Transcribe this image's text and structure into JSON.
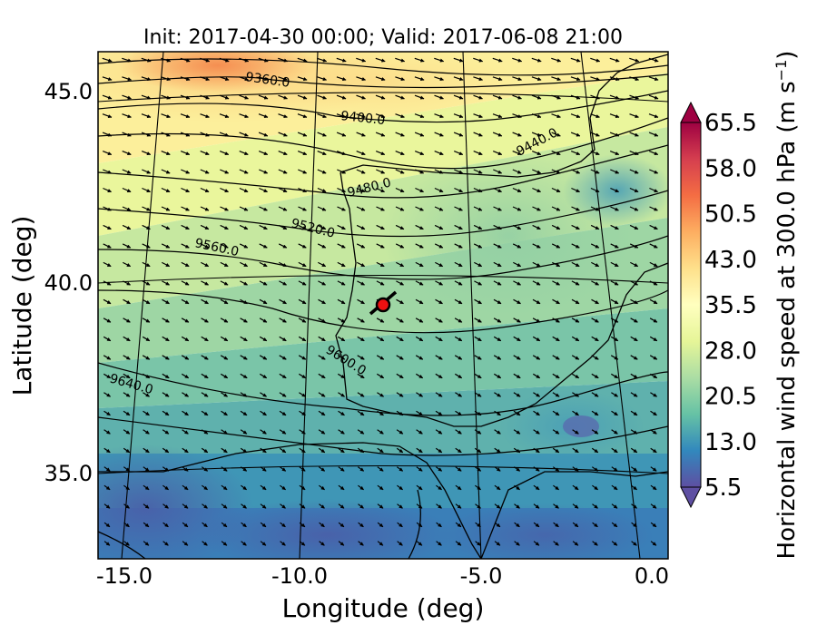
{
  "chart_data": {
    "type": "heatmap",
    "title": "Init: 2017-04-30 00:00; Valid: 2017-06-08 21:00",
    "xlabel": "Longitude (deg)",
    "ylabel": "Latitude (deg)",
    "xlim": [
      -16,
      0.3
    ],
    "ylim": [
      32.5,
      46
    ],
    "x_ticks": [
      "-15.0",
      "-10.0",
      "-5.0",
      "0.0"
    ],
    "x_tick_values": [
      -15,
      -10,
      -5,
      0
    ],
    "y_ticks": [
      "45.0",
      "40.0",
      "35.0"
    ],
    "y_tick_values": [
      45,
      40,
      35
    ],
    "colorbar": {
      "label": "Horizontal wind speed at 300.0 hPa (m s⁻¹)",
      "label_main": "Horizontal wind speed at 300.0 hPa (m s",
      "label_sup": "−1",
      "label_end": ")",
      "min": 5.5,
      "max": 65.5,
      "extend": "both",
      "colormap": "Spectral_r",
      "tick_labels": [
        "65.5",
        "58.0",
        "50.5",
        "43.0",
        "35.5",
        "28.0",
        "20.5",
        "13.0",
        "5.5"
      ],
      "tick_values": [
        65.5,
        58.0,
        50.5,
        43.0,
        35.5,
        28.0,
        20.5,
        13.0,
        5.5
      ]
    },
    "contours": {
      "field": "geopotential height",
      "labels": [
        "9360.0",
        "9400.0",
        "9440.0",
        "9480.0",
        "9520.0",
        "9560.0",
        "9600.0",
        "9640.0"
      ],
      "values": [
        9360,
        9400,
        9440,
        9480,
        9520,
        9560,
        9600,
        9640
      ]
    },
    "marker": {
      "lon": -7.6,
      "lat": 39.3,
      "color": "#ee1111"
    },
    "grid": true,
    "wind_vectors": "arrows showing W-NW to E-SE flow across the domain"
  },
  "colors": {
    "marker_fill": "#ee1111",
    "contour": "#000000",
    "coast": "#000000",
    "arrow": "#000000"
  }
}
